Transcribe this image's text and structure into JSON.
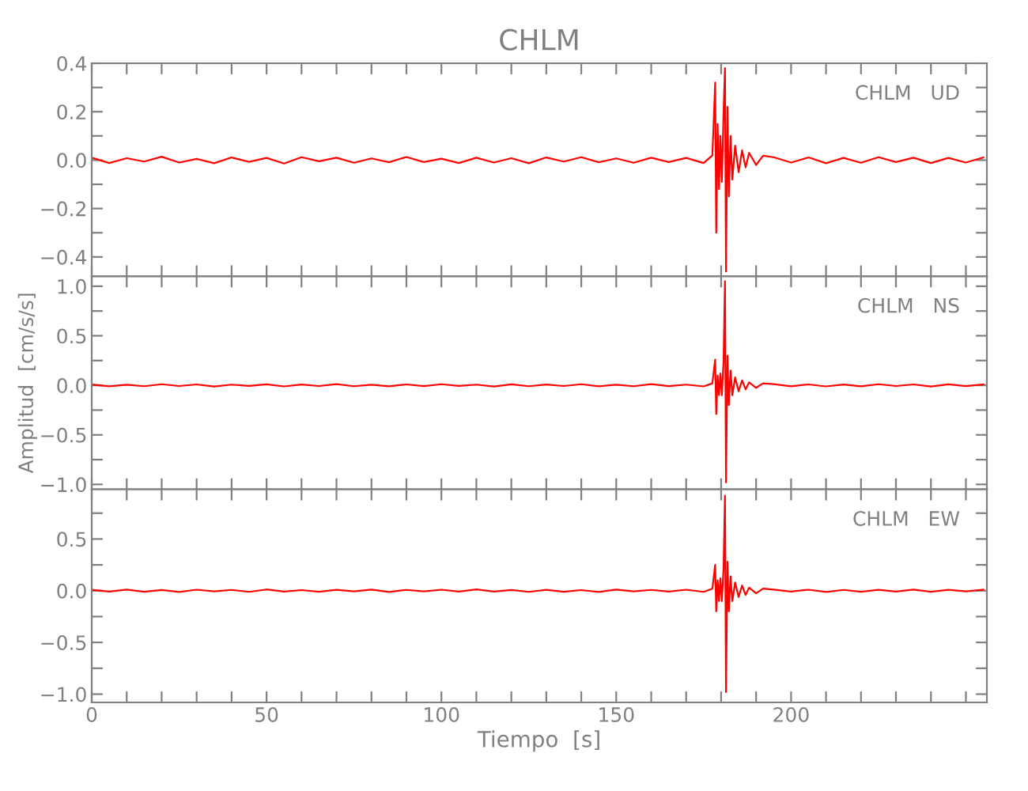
{
  "chart_data": [
    {
      "type": "line",
      "title": "CHLM",
      "annotations": [
        "CHLM   UD"
      ],
      "tick_labels": "y",
      "grid": false,
      "legend": false,
      "xlim": [
        0,
        256
      ],
      "ylim": [
        -0.48,
        0.4
      ],
      "xticks": [
        {
          "value": 0,
          "label": null
        },
        {
          "value": 10,
          "label": null
        },
        {
          "value": 20,
          "label": null
        },
        {
          "value": 30,
          "label": null
        },
        {
          "value": 40,
          "label": null
        },
        {
          "value": 50,
          "label": null
        },
        {
          "value": 60,
          "label": null
        },
        {
          "value": 70,
          "label": null
        },
        {
          "value": 80,
          "label": null
        },
        {
          "value": 90,
          "label": null
        },
        {
          "value": 100,
          "label": null
        },
        {
          "value": 110,
          "label": null
        },
        {
          "value": 120,
          "label": null
        },
        {
          "value": 130,
          "label": null
        },
        {
          "value": 140,
          "label": null
        },
        {
          "value": 150,
          "label": null
        },
        {
          "value": 160,
          "label": null
        },
        {
          "value": 170,
          "label": null
        },
        {
          "value": 180,
          "label": null
        },
        {
          "value": 190,
          "label": null
        },
        {
          "value": 200,
          "label": null
        },
        {
          "value": 210,
          "label": null
        },
        {
          "value": 220,
          "label": null
        },
        {
          "value": 230,
          "label": null
        },
        {
          "value": 240,
          "label": null
        },
        {
          "value": 250,
          "label": null
        }
      ],
      "yticks": [
        {
          "value": -0.4,
          "label": "−0.4"
        },
        {
          "value": -0.3,
          "label": null
        },
        {
          "value": -0.2,
          "label": "−0.2"
        },
        {
          "value": -0.1,
          "label": null
        },
        {
          "value": 0,
          "label": "0.0"
        },
        {
          "value": 0.1,
          "label": null
        },
        {
          "value": 0.2,
          "label": "0.2"
        },
        {
          "value": 0.3,
          "label": null
        },
        {
          "value": 0.4,
          "label": "0.4"
        }
      ],
      "x": [
        0,
        5,
        10,
        15,
        20,
        25,
        30,
        35,
        40,
        45,
        50,
        55,
        60,
        65,
        70,
        75,
        80,
        85,
        90,
        95,
        100,
        105,
        110,
        115,
        120,
        125,
        130,
        135,
        140,
        145,
        150,
        155,
        160,
        165,
        170,
        175,
        177.5,
        178.3,
        178.6,
        179.0,
        179.4,
        179.8,
        180.2,
        180.7,
        181.1,
        181.4,
        181.8,
        182.2,
        182.7,
        183.2,
        184,
        185,
        186,
        187,
        188,
        190,
        192,
        195,
        200,
        205,
        210,
        215,
        220,
        225,
        230,
        235,
        240,
        245,
        250,
        255
      ],
      "series": [
        {
          "color": "#ff0000",
          "values": [
            0.01,
            -0.012,
            0.008,
            -0.006,
            0.014,
            -0.01,
            0.005,
            -0.013,
            0.011,
            -0.007,
            0.009,
            -0.014,
            0.012,
            -0.005,
            0.01,
            -0.011,
            0.007,
            -0.009,
            0.013,
            -0.008,
            0.006,
            -0.012,
            0.01,
            -0.01,
            0.008,
            -0.013,
            0.011,
            -0.006,
            0.012,
            -0.009,
            0.007,
            -0.011,
            0.01,
            -0.008,
            0.009,
            -0.012,
            0.02,
            0.32,
            -0.3,
            0.15,
            -0.12,
            0.1,
            -0.09,
            0.2,
            0.38,
            -0.46,
            0.22,
            -0.15,
            0.1,
            -0.08,
            0.06,
            -0.05,
            0.04,
            -0.03,
            0.03,
            -0.02,
            0.018,
            0.012,
            -0.01,
            0.011,
            -0.013,
            0.009,
            -0.011,
            0.012,
            -0.008,
            0.01,
            -0.012,
            0.009,
            -0.01,
            0.011
          ]
        }
      ]
    },
    {
      "type": "line",
      "annotations": [
        "CHLM   NS"
      ],
      "ylabel": "Amplitud  [cm/s/s]",
      "tick_labels": "y",
      "grid": false,
      "legend": false,
      "xlim": [
        0,
        256
      ],
      "ylim": [
        -1.05,
        1.1
      ],
      "xticks": [
        {
          "value": 0,
          "label": null
        },
        {
          "value": 10,
          "label": null
        },
        {
          "value": 20,
          "label": null
        },
        {
          "value": 30,
          "label": null
        },
        {
          "value": 40,
          "label": null
        },
        {
          "value": 50,
          "label": null
        },
        {
          "value": 60,
          "label": null
        },
        {
          "value": 70,
          "label": null
        },
        {
          "value": 80,
          "label": null
        },
        {
          "value": 90,
          "label": null
        },
        {
          "value": 100,
          "label": null
        },
        {
          "value": 110,
          "label": null
        },
        {
          "value": 120,
          "label": null
        },
        {
          "value": 130,
          "label": null
        },
        {
          "value": 140,
          "label": null
        },
        {
          "value": 150,
          "label": null
        },
        {
          "value": 160,
          "label": null
        },
        {
          "value": 170,
          "label": null
        },
        {
          "value": 180,
          "label": null
        },
        {
          "value": 190,
          "label": null
        },
        {
          "value": 200,
          "label": null
        },
        {
          "value": 210,
          "label": null
        },
        {
          "value": 220,
          "label": null
        },
        {
          "value": 230,
          "label": null
        },
        {
          "value": 240,
          "label": null
        },
        {
          "value": 250,
          "label": null
        }
      ],
      "yticks": [
        {
          "value": -1.0,
          "label": "−1.0"
        },
        {
          "value": -0.75,
          "label": null
        },
        {
          "value": -0.5,
          "label": "−0.5"
        },
        {
          "value": -0.25,
          "label": null
        },
        {
          "value": 0,
          "label": "0.0"
        },
        {
          "value": 0.25,
          "label": null
        },
        {
          "value": 0.5,
          "label": "0.5"
        },
        {
          "value": 0.75,
          "label": null
        },
        {
          "value": 1.0,
          "label": "1.0"
        }
      ],
      "x": [
        0,
        5,
        10,
        15,
        20,
        25,
        30,
        35,
        40,
        45,
        50,
        55,
        60,
        65,
        70,
        75,
        80,
        85,
        90,
        95,
        100,
        105,
        110,
        115,
        120,
        125,
        130,
        135,
        140,
        145,
        150,
        155,
        160,
        165,
        170,
        175,
        177.5,
        178.3,
        178.6,
        179.0,
        179.4,
        179.8,
        180.2,
        180.7,
        181.1,
        181.4,
        181.8,
        182.2,
        182.7,
        183.2,
        184,
        185,
        186,
        187,
        188,
        190,
        192,
        195,
        200,
        205,
        210,
        215,
        220,
        225,
        230,
        235,
        240,
        245,
        250,
        255
      ],
      "series": [
        {
          "color": "#ff0000",
          "values": [
            0.008,
            -0.01,
            0.006,
            -0.009,
            0.011,
            -0.007,
            0.009,
            -0.012,
            0.007,
            -0.006,
            0.01,
            -0.011,
            0.008,
            -0.007,
            0.012,
            -0.009,
            0.006,
            -0.01,
            0.009,
            -0.008,
            0.011,
            -0.006,
            0.007,
            -0.012,
            0.01,
            -0.009,
            0.008,
            -0.007,
            0.011,
            -0.01,
            0.006,
            -0.009,
            0.012,
            -0.008,
            0.007,
            -0.011,
            0.02,
            0.26,
            -0.29,
            0.1,
            -0.1,
            0.12,
            -0.1,
            0.25,
            1.05,
            -0.98,
            0.3,
            -0.2,
            0.15,
            -0.1,
            0.08,
            -0.06,
            0.05,
            -0.04,
            0.03,
            -0.025,
            0.02,
            0.012,
            -0.01,
            0.009,
            -0.011,
            0.008,
            -0.01,
            0.011,
            -0.007,
            0.009,
            -0.012,
            0.01,
            -0.008,
            0.009
          ]
        }
      ]
    },
    {
      "type": "line",
      "annotations": [
        "CHLM   EW"
      ],
      "xlabel": "Tiempo  [s]",
      "grid": false,
      "legend": false,
      "xlim": [
        0,
        256
      ],
      "ylim": [
        -1.08,
        0.98
      ],
      "xticks": [
        {
          "value": 0,
          "label": "0"
        },
        {
          "value": 10,
          "label": null
        },
        {
          "value": 20,
          "label": null
        },
        {
          "value": 30,
          "label": null
        },
        {
          "value": 40,
          "label": null
        },
        {
          "value": 50,
          "label": "50"
        },
        {
          "value": 60,
          "label": null
        },
        {
          "value": 70,
          "label": null
        },
        {
          "value": 80,
          "label": null
        },
        {
          "value": 90,
          "label": null
        },
        {
          "value": 100,
          "label": "100"
        },
        {
          "value": 110,
          "label": null
        },
        {
          "value": 120,
          "label": null
        },
        {
          "value": 130,
          "label": null
        },
        {
          "value": 140,
          "label": null
        },
        {
          "value": 150,
          "label": "150"
        },
        {
          "value": 160,
          "label": null
        },
        {
          "value": 170,
          "label": null
        },
        {
          "value": 180,
          "label": null
        },
        {
          "value": 190,
          "label": null
        },
        {
          "value": 200,
          "label": "200"
        },
        {
          "value": 210,
          "label": null
        },
        {
          "value": 220,
          "label": null
        },
        {
          "value": 230,
          "label": null
        },
        {
          "value": 240,
          "label": null
        },
        {
          "value": 250,
          "label": null
        }
      ],
      "yticks": [
        {
          "value": -1.0,
          "label": "−1.0"
        },
        {
          "value": -0.75,
          "label": null
        },
        {
          "value": -0.5,
          "label": "−0.5"
        },
        {
          "value": -0.25,
          "label": null
        },
        {
          "value": 0,
          "label": "0.0"
        },
        {
          "value": 0.25,
          "label": null
        },
        {
          "value": 0.5,
          "label": "0.5"
        },
        {
          "value": 0.75,
          "label": null
        }
      ],
      "x": [
        0,
        5,
        10,
        15,
        20,
        25,
        30,
        35,
        40,
        45,
        50,
        55,
        60,
        65,
        70,
        75,
        80,
        85,
        90,
        95,
        100,
        105,
        110,
        115,
        120,
        125,
        130,
        135,
        140,
        145,
        150,
        155,
        160,
        165,
        170,
        175,
        177.5,
        178.3,
        178.6,
        179.0,
        179.4,
        179.8,
        180.2,
        180.7,
        181.1,
        181.4,
        181.8,
        182.2,
        182.7,
        183.2,
        184,
        185,
        186,
        187,
        188,
        190,
        192,
        195,
        200,
        205,
        210,
        215,
        220,
        225,
        230,
        235,
        240,
        245,
        250,
        255
      ],
      "series": [
        {
          "color": "#ff0000",
          "values": [
            0.009,
            -0.008,
            0.011,
            -0.01,
            0.007,
            -0.012,
            0.01,
            -0.006,
            0.008,
            -0.011,
            0.012,
            -0.009,
            0.006,
            -0.01,
            0.009,
            -0.007,
            0.011,
            -0.012,
            0.008,
            -0.006,
            0.01,
            -0.009,
            0.012,
            -0.008,
            0.007,
            -0.011,
            0.009,
            -0.01,
            0.006,
            -0.012,
            0.011,
            -0.007,
            0.008,
            -0.009,
            0.01,
            -0.011,
            0.02,
            0.25,
            -0.2,
            0.1,
            -0.1,
            0.12,
            -0.1,
            0.22,
            0.92,
            -0.98,
            0.28,
            -0.2,
            0.14,
            -0.1,
            0.08,
            -0.06,
            0.05,
            -0.04,
            0.03,
            -0.025,
            0.02,
            0.011,
            -0.009,
            0.01,
            -0.012,
            0.008,
            -0.01,
            0.009,
            -0.008,
            0.011,
            -0.01,
            0.009,
            -0.007,
            0.01
          ]
        }
      ]
    }
  ]
}
